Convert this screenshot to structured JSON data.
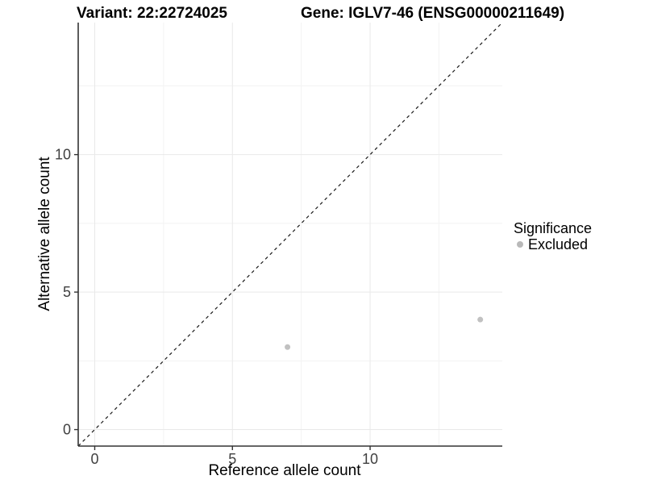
{
  "chart_data": {
    "type": "scatter",
    "title_left": "Variant: 22:22724025",
    "title_right": "Gene: IGLV7-46 (ENSG00000211649)",
    "xlabel": "Reference allele count",
    "ylabel": "Alternative allele count",
    "xlim": [
      -0.6,
      14.8
    ],
    "ylim": [
      -0.6,
      14.8
    ],
    "x_ticks": [
      0,
      5,
      10
    ],
    "x_tick_labels": [
      "0",
      "5",
      "10"
    ],
    "y_ticks": [
      0,
      5,
      10
    ],
    "y_tick_labels": [
      "0",
      "5",
      "10"
    ],
    "x_minor_ticks": [
      2.5,
      7.5,
      12.5
    ],
    "y_minor_ticks": [
      2.5,
      7.5,
      12.5
    ],
    "grid": "major+minor",
    "identity_line": {
      "style": "dashed",
      "from": [
        -0.6,
        -0.6
      ],
      "to": [
        14.8,
        14.8
      ],
      "color": "#1a1a1a"
    },
    "series": [
      {
        "name": "Excluded",
        "color": "#c1c1c1",
        "point_radius": 3.5,
        "points": [
          {
            "x": 7,
            "y": 3
          },
          {
            "x": 14,
            "y": 4
          }
        ]
      }
    ],
    "legend": {
      "title": "Significance",
      "position": "right",
      "items": [
        {
          "label": "Excluded",
          "color": "#b9b9b9"
        }
      ]
    },
    "style": {
      "grid_major": "#e9e9e9",
      "grid_minor": "#f3f3f3",
      "axis_line": "#333333",
      "tick_label_color": "#404040",
      "tick_font_size": 18,
      "background": "#ffffff"
    }
  }
}
